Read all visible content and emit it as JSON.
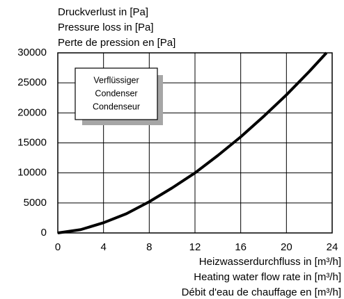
{
  "chart_data": {
    "type": "line",
    "ylabel": [
      "Druckverlust in [Pa]",
      "Pressure loss in [Pa]",
      "Perte de pression en [Pa]"
    ],
    "xlabel": [
      "Heizwasserdurchfluss in [m³/h]",
      "Heating water flow rate in [m³/h]",
      "Débit d'eau de chauffage en [m³/h]"
    ],
    "annotation": [
      "Verflüssiger",
      "Condenser",
      "Condenseur"
    ],
    "x": [
      0,
      2,
      4,
      6,
      8,
      10,
      12,
      14,
      16,
      18,
      20,
      22,
      23.5
    ],
    "series": [
      {
        "color": "#000000",
        "values": [
          0,
          550,
          1700,
          3200,
          5200,
          7500,
          10000,
          12900,
          16000,
          19400,
          23000,
          26900,
          30000
        ]
      }
    ],
    "xlim": [
      0,
      24
    ],
    "xticks": [
      0,
      4,
      8,
      12,
      16,
      20,
      24
    ],
    "ylim": [
      0,
      30000
    ],
    "yticks": [
      0,
      5000,
      10000,
      15000,
      20000,
      25000,
      30000
    ],
    "grid": true
  }
}
